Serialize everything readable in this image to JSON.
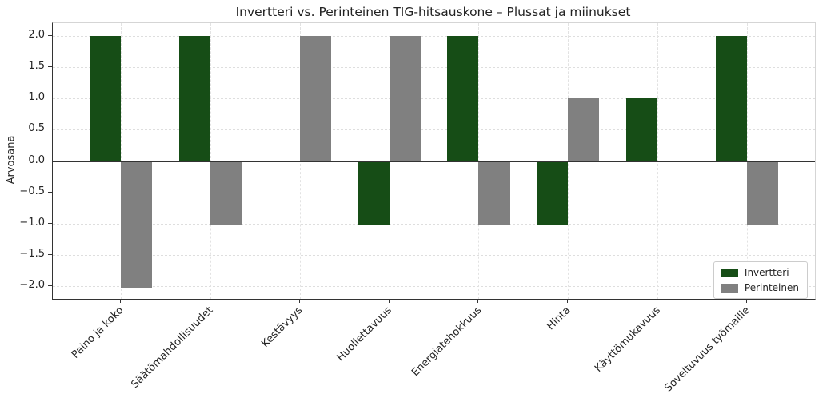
{
  "chart_data": {
    "type": "bar",
    "title": "Invertteri vs. Perinteinen TIG-hitsauskone – Plussat ja miinukset",
    "xlabel": "",
    "ylabel": "Arvosana",
    "categories": [
      "Paino ja koko",
      "Säätömahdollisuudet",
      "Kestävyys",
      "Huollettavuus",
      "Energiatehokkuus",
      "Hinta",
      "Käyttömukavuus",
      "Soveltuvuus työmaille"
    ],
    "series": [
      {
        "name": "Invertteri",
        "color": "#164d16",
        "values": [
          2,
          2,
          0,
          -1,
          2,
          -1,
          1,
          2
        ]
      },
      {
        "name": "Perinteinen",
        "color": "#808080",
        "values": [
          -2,
          -1,
          2,
          2,
          -1,
          1,
          0,
          -1
        ]
      }
    ],
    "yticks": [
      -2.0,
      -1.5,
      -1.0,
      -0.5,
      0.0,
      0.5,
      1.0,
      1.5,
      2.0
    ],
    "ylim": [
      -2.2,
      2.2
    ],
    "xlim": [
      -0.7625,
      7.7625
    ],
    "bar_width": 0.35,
    "grid": true,
    "zero_line": true,
    "legend_position": "lower right"
  },
  "colors": {
    "background": "#ffffff",
    "axis": "#333333",
    "grid": "#dedede",
    "text": "#262626",
    "legend_border": "#cccccc"
  }
}
